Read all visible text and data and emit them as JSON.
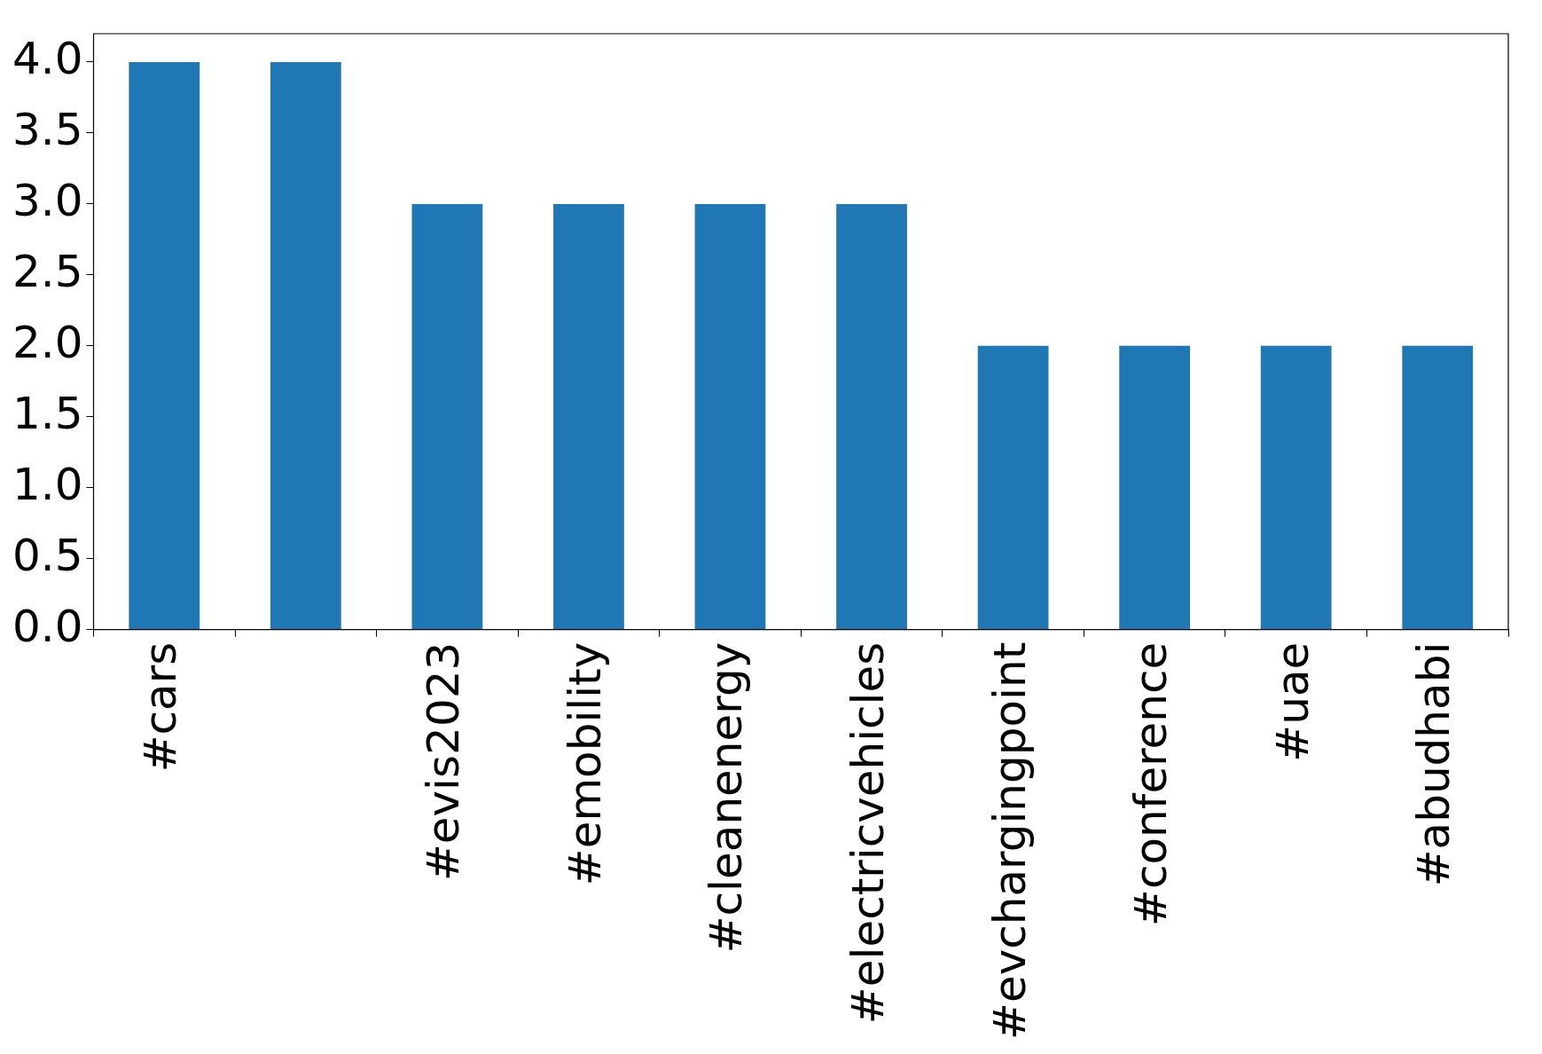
{
  "chart_data": {
    "type": "bar",
    "categories": [
      "#cars",
      null,
      "#evis2023",
      "#emobility",
      "#cleanenergy",
      "#electricvehicles",
      "#evchargingpoint",
      "#conference",
      "#uae",
      "#abudhabi"
    ],
    "values": [
      4,
      4,
      3,
      3,
      3,
      3,
      2,
      2,
      2,
      2
    ],
    "color": "#1f77b4",
    "ylim": [
      0,
      4.2
    ],
    "yticks": [
      {
        "value": 0,
        "label": "0.0"
      },
      {
        "value": 0.5,
        "label": "0.5"
      },
      {
        "value": 1,
        "label": "1.0"
      },
      {
        "value": 1.5,
        "label": "1.5"
      },
      {
        "value": 2,
        "label": "2.0"
      },
      {
        "value": 2.5,
        "label": "2.5"
      },
      {
        "value": 3,
        "label": "3.0"
      },
      {
        "value": 3.5,
        "label": "3.5"
      },
      {
        "value": 4,
        "label": "4.0"
      }
    ],
    "grid": false,
    "legend": false
  }
}
